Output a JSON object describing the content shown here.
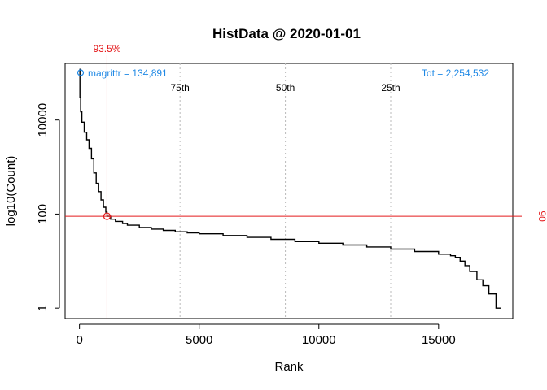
{
  "chart_data": {
    "type": "line",
    "title": "HistData @ 2020-01-01",
    "xlabel": "Rank",
    "ylabel": "log10(Count)",
    "log_y": true,
    "xlim": [
      -600,
      18100
    ],
    "ylim": [
      0.6,
      160000
    ],
    "x_ticks": [
      0,
      5000,
      10000,
      15000
    ],
    "x_tick_labels": [
      "0",
      "5000",
      "10000",
      "15000"
    ],
    "y_ticks": [
      1,
      100,
      10000
    ],
    "y_tick_labels": [
      "1",
      "100",
      "10000"
    ],
    "series": [
      {
        "points": [
          [
            0,
            120000
          ],
          [
            20,
            30000
          ],
          [
            50,
            15000
          ],
          [
            100,
            9000
          ],
          [
            200,
            5500
          ],
          [
            300,
            3800
          ],
          [
            400,
            2500
          ],
          [
            500,
            1500
          ],
          [
            600,
            750
          ],
          [
            700,
            450
          ],
          [
            800,
            300
          ],
          [
            900,
            200
          ],
          [
            1000,
            140
          ],
          [
            1100,
            110
          ],
          [
            1150,
            90
          ],
          [
            1300,
            78
          ],
          [
            1500,
            70
          ],
          [
            1800,
            63
          ],
          [
            2000,
            58
          ],
          [
            2500,
            52
          ],
          [
            3000,
            48
          ],
          [
            3500,
            45
          ],
          [
            4000,
            42
          ],
          [
            4500,
            40
          ],
          [
            5000,
            38
          ],
          [
            6000,
            35
          ],
          [
            7000,
            32
          ],
          [
            8000,
            29
          ],
          [
            9000,
            26
          ],
          [
            10000,
            24
          ],
          [
            11000,
            22
          ],
          [
            12000,
            20
          ],
          [
            13000,
            18
          ],
          [
            14000,
            16
          ],
          [
            15000,
            14
          ],
          [
            15500,
            13
          ],
          [
            15700,
            12
          ],
          [
            15900,
            10
          ],
          [
            16100,
            8
          ],
          [
            16300,
            6
          ],
          [
            16600,
            4
          ],
          [
            16850,
            3
          ],
          [
            17100,
            2
          ],
          [
            17400,
            1
          ],
          [
            17600,
            1
          ]
        ]
      }
    ],
    "percentile_lines": [
      {
        "label": "75th",
        "x": 4200
      },
      {
        "label": "50th",
        "x": 8600
      },
      {
        "label": "25th",
        "x": 13000
      }
    ],
    "highlight": {
      "x": 1150,
      "y": 90,
      "x_label": "93.5%",
      "y_label": "90",
      "point_label": "magrittr = 134,891"
    },
    "total_label": "Tot =  2,254,532"
  },
  "colors": {
    "line": "#000000",
    "highlight": "#e41a1c",
    "annotation": "#1e88e5",
    "percentile": "#bbbbbb"
  }
}
